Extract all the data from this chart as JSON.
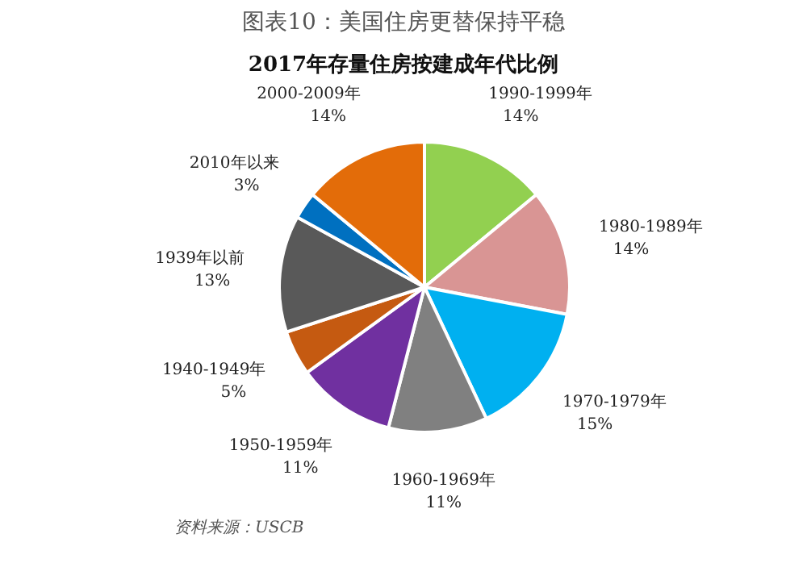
{
  "chart_data": {
    "type": "pie",
    "title": "图表10：美国住房更替保持平稳",
    "subtitle": "2017年存量住房按建成年代比例",
    "categories": [
      "1990-1999年",
      "1980-1989年",
      "1970-1979年",
      "1960-1969年",
      "1950-1959年",
      "1940-1949年",
      "1939年以前",
      "2010年以来",
      "2000-2009年"
    ],
    "values": [
      14,
      14,
      15,
      11,
      11,
      5,
      13,
      3,
      14
    ],
    "colors": [
      "#92d050",
      "#d99594",
      "#00b0f0",
      "#808080",
      "#7030a0",
      "#c55a11",
      "#595959",
      "#0070c0",
      "#e36c09"
    ],
    "value_labels": [
      "14%",
      "14%",
      "15%",
      "11%",
      "11%",
      "5%",
      "13%",
      "3%",
      "14%"
    ],
    "annotations": [
      "资料来源：USCB"
    ]
  }
}
